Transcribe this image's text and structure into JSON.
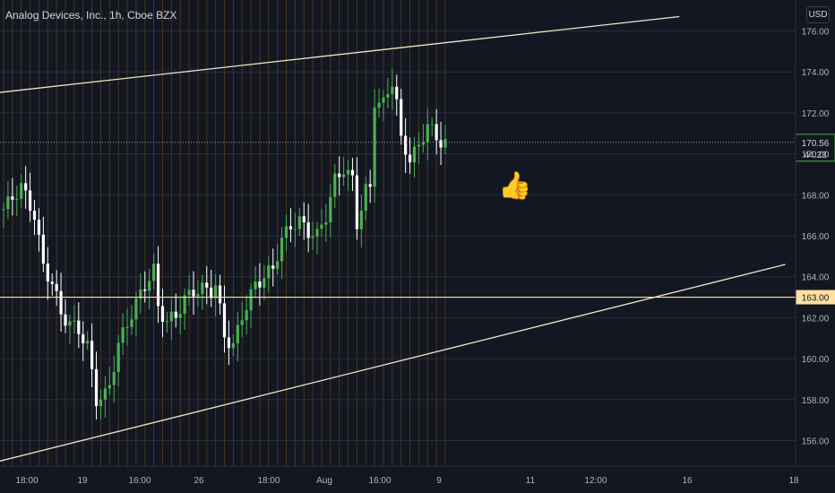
{
  "header": {
    "title": "Analog Devices, Inc., 1h, Cboe BZX",
    "currency": "USD"
  },
  "annotations": {
    "thumb_icon": "thumbs-up-icon",
    "thumb_glyph": "👍"
  },
  "colors": {
    "background": "#131722",
    "up": "#4caf50",
    "down": "#ffffff",
    "trendline": "#f0e6c8",
    "level_line": "#ffe0a0",
    "session_line": "#6b4a1a",
    "axis_text": "#b2b5be"
  },
  "chart_data": {
    "type": "candlestick",
    "title": "Analog Devices, Inc., 1h, Cboe BZX",
    "ylabel": "USD",
    "ylim": [
      155,
      176.7
    ],
    "x_ticks": [
      "18:00",
      "19",
      "16:00",
      "26",
      "18:00",
      "Aug",
      "16:00",
      "9",
      "11",
      "12:00",
      "16",
      "18"
    ],
    "y_ticks": [
      156,
      158,
      160,
      162,
      164,
      166,
      168,
      170,
      172,
      174,
      176
    ],
    "current_price": {
      "value": 170.56,
      "label": "170.56",
      "countdown": "44:23"
    },
    "horizontal_level": {
      "value": 163.0,
      "label": "163.00"
    },
    "trendlines": [
      {
        "name": "upper",
        "points": [
          [
            0,
            173.0
          ],
          [
            153,
            176.7
          ]
        ]
      },
      {
        "name": "lower",
        "points": [
          [
            0,
            155.0
          ],
          [
            177,
            164.6
          ]
        ]
      }
    ],
    "close_path": [
      [
        0,
        167.3
      ],
      [
        4,
        168.4
      ],
      [
        7,
        167.0
      ],
      [
        9,
        164.5
      ],
      [
        11,
        163.7
      ],
      [
        13,
        162.2
      ],
      [
        15,
        161.7
      ],
      [
        17,
        161.4
      ],
      [
        19,
        160.6
      ],
      [
        20,
        159.3
      ],
      [
        21,
        158.0
      ],
      [
        23,
        158.2
      ],
      [
        24,
        158.7
      ],
      [
        26,
        160.7
      ],
      [
        28,
        161.7
      ],
      [
        30,
        162.7
      ],
      [
        32,
        163.6
      ],
      [
        34,
        164.3
      ],
      [
        35,
        162.5
      ],
      [
        37,
        161.8
      ],
      [
        39,
        162.1
      ],
      [
        41,
        162.9
      ],
      [
        43,
        163.3
      ],
      [
        45,
        163.4
      ],
      [
        47,
        163.3
      ],
      [
        48,
        163.6
      ],
      [
        50,
        161.1
      ],
      [
        52,
        160.6
      ],
      [
        54,
        162.1
      ],
      [
        57,
        163.6
      ],
      [
        59,
        164.0
      ],
      [
        61,
        164.4
      ],
      [
        63,
        165.8
      ],
      [
        65,
        166.5
      ],
      [
        67,
        166.7
      ],
      [
        69,
        166.2
      ],
      [
        71,
        166.0
      ],
      [
        73,
        167.0
      ],
      [
        75,
        168.7
      ],
      [
        77,
        169.3
      ],
      [
        79,
        168.7
      ],
      [
        80,
        166.6
      ],
      [
        82,
        168.2
      ],
      [
        83,
        168.3
      ],
      [
        84,
        172.6
      ],
      [
        86,
        172.4
      ],
      [
        88,
        173.6
      ],
      [
        89,
        172.5
      ],
      [
        90,
        170.6
      ],
      [
        92,
        169.8
      ],
      [
        94,
        170.3
      ],
      [
        96,
        171.5
      ],
      [
        98,
        170.7
      ],
      [
        100,
        170.6
      ]
    ]
  }
}
